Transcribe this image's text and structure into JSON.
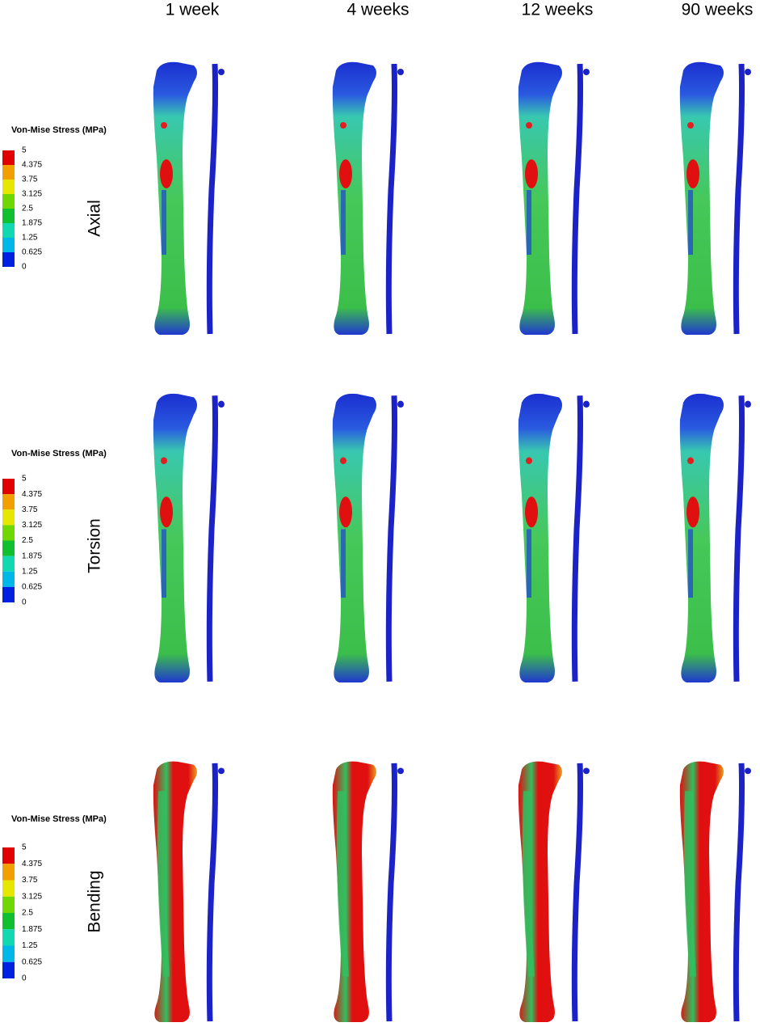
{
  "columns": [
    "1 week",
    "4 weeks",
    "12 weeks",
    "90 weeks"
  ],
  "rows": [
    {
      "label": "Axial",
      "legend": {
        "title": "Von-Mise Stress (MPa)",
        "levels": [
          "5",
          "4.375",
          "3.75",
          "3.125",
          "2.5",
          "1.875",
          "1.25",
          "0.625",
          "0"
        ]
      }
    },
    {
      "label": "Torsion",
      "legend": {
        "title": "Von-Mise Stress (MPa)",
        "levels": [
          "5",
          "4.375",
          "3.75",
          "3.125",
          "2.5",
          "1.875",
          "1.25",
          "0.625",
          "0"
        ]
      }
    },
    {
      "label": "Bending",
      "legend": {
        "title": "Von-Mise Stress (MPa)",
        "levels": [
          "5",
          "4.375",
          "3.75",
          "3.125",
          "2.5",
          "1.875",
          "1.25",
          "0.625",
          "0"
        ]
      }
    }
  ]
}
